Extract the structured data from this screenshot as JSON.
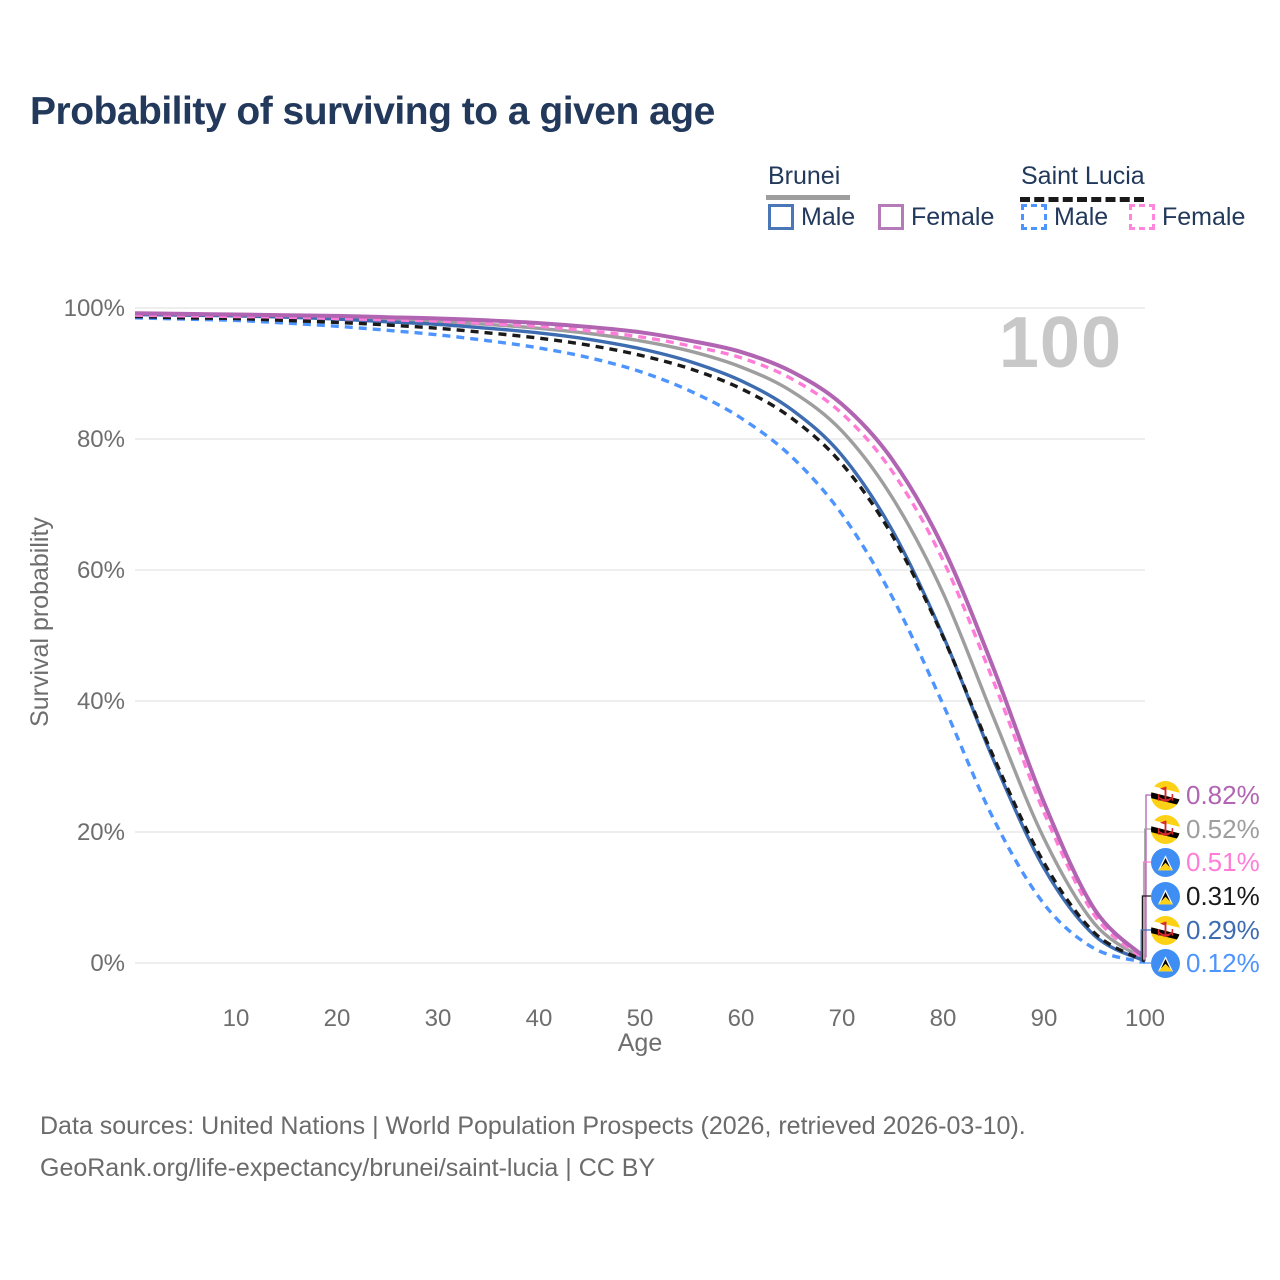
{
  "title": "Probability of surviving to a given age",
  "legend": {
    "groups": [
      {
        "label": "Brunei",
        "line_style": "solid",
        "line_color": "#9e9e9e",
        "items": [
          {
            "label": "Male",
            "swatch_color": "#4a77b8",
            "dashed": false
          },
          {
            "label": "Female",
            "swatch_color": "#b57bb8",
            "dashed": false
          }
        ]
      },
      {
        "label": "Saint Lucia",
        "line_style": "dashed",
        "line_color": "#1a1a1a",
        "items": [
          {
            "label": "Male",
            "swatch_color": "#4d94ff",
            "dashed": true
          },
          {
            "label": "Female",
            "swatch_color": "#ff85dd",
            "dashed": true
          }
        ]
      }
    ]
  },
  "chart_data": {
    "type": "line",
    "title": "Probability of surviving to a given age",
    "xlabel": "Age",
    "ylabel": "Survival probability",
    "xlim": [
      0,
      100
    ],
    "ylim": [
      0,
      100
    ],
    "grid": true,
    "watermark": "100",
    "x_ticks": [
      10,
      20,
      30,
      40,
      50,
      60,
      70,
      80,
      90,
      100
    ],
    "y_ticks": [
      0,
      20,
      40,
      60,
      80,
      100
    ],
    "y_tick_suffix": "%",
    "ages": [
      0,
      5,
      10,
      15,
      20,
      25,
      30,
      35,
      40,
      45,
      50,
      55,
      60,
      65,
      70,
      75,
      80,
      85,
      90,
      95,
      100
    ],
    "series": [
      {
        "id": "saint-lucia-male",
        "name": "Saint Lucia Male",
        "color": "#4d94ff",
        "dash": "8 6",
        "width": 3.4,
        "values": [
          98.5,
          98.3,
          98.1,
          97.7,
          97.2,
          96.6,
          95.9,
          95.0,
          93.9,
          92.4,
          90.3,
          87.3,
          83.2,
          77.3,
          68.5,
          55.8,
          39.5,
          22.0,
          9.0,
          2.2,
          0.12
        ]
      },
      {
        "id": "brunei-total",
        "name": "Brunei",
        "color": "#9e9e9e",
        "dash": null,
        "width": 3.4,
        "values": [
          99.1,
          99.0,
          98.9,
          98.7,
          98.5,
          98.2,
          97.9,
          97.5,
          96.9,
          96.1,
          95.0,
          93.4,
          91.0,
          87.3,
          81.2,
          71.0,
          56.5,
          37.5,
          19.0,
          6.0,
          0.52
        ]
      },
      {
        "id": "brunei-male",
        "name": "Brunei Male",
        "color": "#3e6cb0",
        "dash": null,
        "width": 3.4,
        "values": [
          99.0,
          98.9,
          98.8,
          98.6,
          98.3,
          97.9,
          97.5,
          96.9,
          96.2,
          95.2,
          93.8,
          91.8,
          88.9,
          84.5,
          77.5,
          66.0,
          50.0,
          31.0,
          14.5,
          4.2,
          0.29
        ]
      },
      {
        "id": "saint-lucia-total",
        "name": "Saint Lucia",
        "color": "#1a1a1a",
        "dash": "8 6",
        "width": 3.4,
        "values": [
          98.7,
          98.5,
          98.4,
          98.1,
          97.8,
          97.4,
          96.9,
          96.2,
          95.4,
          94.3,
          92.8,
          90.7,
          87.7,
          83.2,
          76.2,
          65.2,
          49.8,
          31.5,
          15.3,
          4.6,
          0.31
        ]
      },
      {
        "id": "saint-lucia-female",
        "name": "Saint Lucia Female",
        "color": "#ff7dd8",
        "dash": "8 6",
        "width": 3.4,
        "values": [
          98.9,
          98.8,
          98.7,
          98.6,
          98.4,
          98.2,
          98.0,
          97.6,
          97.2,
          96.5,
          95.6,
          94.2,
          92.4,
          89.2,
          83.9,
          75.0,
          61.5,
          43.0,
          23.0,
          7.3,
          0.51
        ]
      },
      {
        "id": "brunei-female",
        "name": "Brunei Female",
        "color": "#b164b1",
        "dash": null,
        "width": 4,
        "values": [
          99.2,
          99.1,
          99.0,
          98.9,
          98.8,
          98.6,
          98.4,
          98.1,
          97.7,
          97.1,
          96.3,
          95.0,
          93.3,
          90.3,
          85.3,
          76.8,
          63.5,
          45.0,
          24.5,
          8.2,
          0.82
        ]
      }
    ],
    "end_labels": [
      {
        "text": "0.82%",
        "value": 0.82,
        "color": "#b164b1",
        "flag": "brunei"
      },
      {
        "text": "0.52%",
        "value": 0.52,
        "color": "#9e9e9e",
        "flag": "brunei"
      },
      {
        "text": "0.51%",
        "value": 0.51,
        "color": "#ff7dd8",
        "flag": "saint-lucia"
      },
      {
        "text": "0.31%",
        "value": 0.31,
        "color": "#1a1a1a",
        "flag": "saint-lucia"
      },
      {
        "text": "0.29%",
        "value": 0.29,
        "color": "#3e6cb0",
        "flag": "brunei"
      },
      {
        "text": "0.12%",
        "value": 0.12,
        "color": "#4d94ff",
        "flag": "saint-lucia"
      }
    ]
  },
  "footer": {
    "line1": "Data sources: United Nations | World Population Prospects (2026, retrieved 2026-03-10).",
    "line2": "GeoRank.org/life-expectancy/brunei/saint-lucia | CC BY"
  }
}
